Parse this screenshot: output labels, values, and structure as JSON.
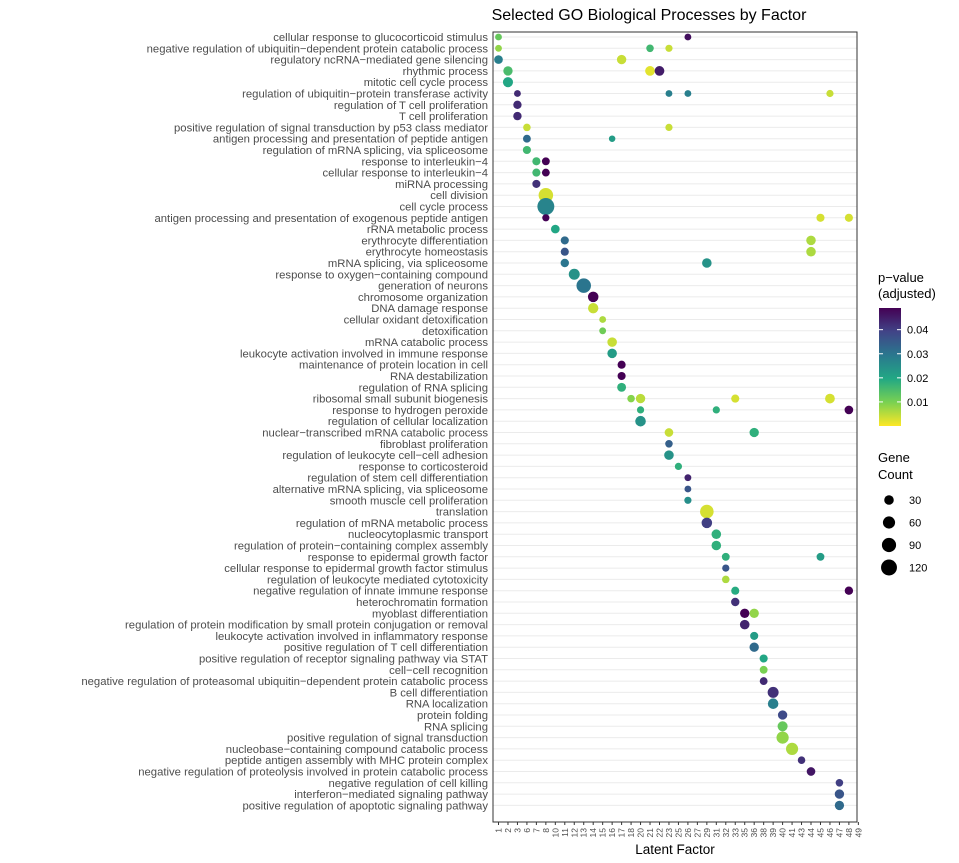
{
  "chart_data": {
    "type": "scatter",
    "title": "Selected GO Biological Processes by Factor",
    "xlabel": "Latent Factor",
    "ylabel": "",
    "x_categories": [
      "1",
      "2",
      "3",
      "6",
      "7",
      "8",
      "10",
      "11",
      "12",
      "13",
      "14",
      "15",
      "16",
      "17",
      "18",
      "20",
      "21",
      "22",
      "23",
      "25",
      "26",
      "27",
      "29",
      "31",
      "32",
      "33",
      "35",
      "36",
      "38",
      "39",
      "40",
      "41",
      "43",
      "44",
      "45",
      "46",
      "47",
      "48",
      "49"
    ],
    "y_categories": [
      "cellular response to glucocorticoid stimulus",
      "negative regulation of ubiquitin−dependent protein catabolic process",
      "regulatory ncRNA−mediated gene silencing",
      "rhythmic process",
      "mitotic cell cycle process",
      "regulation of ubiquitin−protein transferase activity",
      "regulation of T cell proliferation",
      "T cell proliferation",
      "positive regulation of signal transduction by p53 class mediator",
      "antigen processing and presentation of peptide antigen",
      "regulation of mRNA splicing, via spliceosome",
      "response to interleukin−4",
      "cellular response to interleukin−4",
      "miRNA processing",
      "cell division",
      "cell cycle process",
      "antigen processing and presentation of exogenous peptide antigen",
      "rRNA metabolic process",
      "erythrocyte differentiation",
      "erythrocyte homeostasis",
      "mRNA splicing, via spliceosome",
      "response to oxygen−containing compound",
      "generation of neurons",
      "chromosome organization",
      "DNA damage response",
      "cellular oxidant detoxification",
      "detoxification",
      "mRNA catabolic process",
      "leukocyte activation involved in immune response",
      "maintenance of protein location in cell",
      "RNA destabilization",
      "regulation of RNA splicing",
      "ribosomal small subunit biogenesis",
      "response to hydrogen peroxide",
      "regulation of cellular localization",
      "nuclear−transcribed mRNA catabolic process",
      "fibroblast proliferation",
      "regulation of leukocyte cell−cell adhesion",
      "response to corticosteroid",
      "regulation of stem cell differentiation",
      "alternative mRNA splicing, via spliceosome",
      "smooth muscle cell proliferation",
      "translation",
      "regulation of mRNA metabolic process",
      "nucleocytoplasmic transport",
      "regulation of protein−containing complex assembly",
      "response to epidermal growth factor",
      "cellular response to epidermal growth factor stimulus",
      "regulation of leukocyte mediated cytotoxicity",
      "negative regulation of innate immune response",
      "heterochromatin formation",
      "myoblast differentiation",
      "regulation of protein modification by small protein conjugation or removal",
      "leukocyte activation involved in inflammatory response",
      "positive regulation of T cell differentiation",
      "positive regulation of receptor signaling pathway via STAT",
      "cell−cell recognition",
      "negative regulation of proteasomal ubiquitin−dependent protein catabolic process",
      "B cell differentiation",
      "RNA localization",
      "protein folding",
      "RNA splicing",
      "positive regulation of signal transduction",
      "nucleobase−containing compound catabolic process",
      "peptide antigen assembly with MHC protein complex",
      "negative regulation of proteolysis involved in protein catabolic process",
      "negative regulation of cell killing",
      "interferon−mediated signaling pathway",
      "positive regulation of apoptotic signaling pathway"
    ],
    "points": [
      {
        "term": 0,
        "factor": "1",
        "count": 10,
        "p": 0.012
      },
      {
        "term": 0,
        "factor": "26",
        "count": 10,
        "p": 0.047
      },
      {
        "term": 1,
        "factor": "1",
        "count": 10,
        "p": 0.008
      },
      {
        "term": 1,
        "factor": "21",
        "count": 14,
        "p": 0.016
      },
      {
        "term": 1,
        "factor": "23",
        "count": 12,
        "p": 0.004
      },
      {
        "term": 2,
        "factor": "1",
        "count": 22,
        "p": 0.028
      },
      {
        "term": 2,
        "factor": "17",
        "count": 28,
        "p": 0.004
      },
      {
        "term": 3,
        "factor": "2",
        "count": 28,
        "p": 0.015
      },
      {
        "term": 3,
        "factor": "21",
        "count": 32,
        "p": 0.002
      },
      {
        "term": 3,
        "factor": "22",
        "count": 32,
        "p": 0.045
      },
      {
        "term": 4,
        "factor": "2",
        "count": 35,
        "p": 0.02
      },
      {
        "term": 5,
        "factor": "3",
        "count": 10,
        "p": 0.043
      },
      {
        "term": 5,
        "factor": "23",
        "count": 10,
        "p": 0.028
      },
      {
        "term": 5,
        "factor": "26",
        "count": 10,
        "p": 0.028
      },
      {
        "term": 5,
        "factor": "46",
        "count": 12,
        "p": 0.004
      },
      {
        "term": 6,
        "factor": "3",
        "count": 20,
        "p": 0.043
      },
      {
        "term": 7,
        "factor": "3",
        "count": 20,
        "p": 0.043
      },
      {
        "term": 8,
        "factor": "6",
        "count": 14,
        "p": 0.004
      },
      {
        "term": 8,
        "factor": "23",
        "count": 12,
        "p": 0.004
      },
      {
        "term": 9,
        "factor": "6",
        "count": 16,
        "p": 0.032
      },
      {
        "term": 9,
        "factor": "16",
        "count": 8,
        "p": 0.022
      },
      {
        "term": 10,
        "factor": "6",
        "count": 18,
        "p": 0.016
      },
      {
        "term": 11,
        "factor": "7",
        "count": 18,
        "p": 0.016
      },
      {
        "term": 11,
        "factor": "8",
        "count": 16,
        "p": 0.049
      },
      {
        "term": 12,
        "factor": "7",
        "count": 18,
        "p": 0.016
      },
      {
        "term": 12,
        "factor": "8",
        "count": 16,
        "p": 0.049
      },
      {
        "term": 13,
        "factor": "7",
        "count": 18,
        "p": 0.042
      },
      {
        "term": 14,
        "factor": "8",
        "count": 95,
        "p": 0.003
      },
      {
        "term": 15,
        "factor": "8",
        "count": 140,
        "p": 0.027
      },
      {
        "term": 16,
        "factor": "8",
        "count": 12,
        "p": 0.049
      },
      {
        "term": 16,
        "factor": "45",
        "count": 18,
        "p": 0.003
      },
      {
        "term": 16,
        "factor": "48",
        "count": 18,
        "p": 0.003
      },
      {
        "term": 17,
        "factor": "10",
        "count": 22,
        "p": 0.02
      },
      {
        "term": 18,
        "factor": "11",
        "count": 18,
        "p": 0.032
      },
      {
        "term": 18,
        "factor": "44",
        "count": 30,
        "p": 0.006
      },
      {
        "term": 19,
        "factor": "11",
        "count": 18,
        "p": 0.036
      },
      {
        "term": 19,
        "factor": "44",
        "count": 30,
        "p": 0.006
      },
      {
        "term": 20,
        "factor": "11",
        "count": 20,
        "p": 0.03
      },
      {
        "term": 20,
        "factor": "29",
        "count": 30,
        "p": 0.024
      },
      {
        "term": 21,
        "factor": "12",
        "count": 45,
        "p": 0.024
      },
      {
        "term": 22,
        "factor": "13",
        "count": 95,
        "p": 0.03
      },
      {
        "term": 23,
        "factor": "14",
        "count": 40,
        "p": 0.049
      },
      {
        "term": 24,
        "factor": "14",
        "count": 38,
        "p": 0.004
      },
      {
        "term": 25,
        "factor": "15",
        "count": 10,
        "p": 0.006
      },
      {
        "term": 26,
        "factor": "15",
        "count": 10,
        "p": 0.011
      },
      {
        "term": 27,
        "factor": "16",
        "count": 30,
        "p": 0.004
      },
      {
        "term": 28,
        "factor": "16",
        "count": 30,
        "p": 0.022
      },
      {
        "term": 29,
        "factor": "17",
        "count": 18,
        "p": 0.049
      },
      {
        "term": 30,
        "factor": "17",
        "count": 18,
        "p": 0.049
      },
      {
        "term": 31,
        "factor": "17",
        "count": 24,
        "p": 0.018
      },
      {
        "term": 32,
        "factor": "18",
        "count": 14,
        "p": 0.009
      },
      {
        "term": 32,
        "factor": "20",
        "count": 28,
        "p": 0.005
      },
      {
        "term": 32,
        "factor": "33",
        "count": 18,
        "p": 0.003
      },
      {
        "term": 32,
        "factor": "46",
        "count": 32,
        "p": 0.003
      },
      {
        "term": 33,
        "factor": "20",
        "count": 12,
        "p": 0.018
      },
      {
        "term": 33,
        "factor": "31",
        "count": 12,
        "p": 0.018
      },
      {
        "term": 33,
        "factor": "48",
        "count": 22,
        "p": 0.049
      },
      {
        "term": 34,
        "factor": "20",
        "count": 40,
        "p": 0.024
      },
      {
        "term": 35,
        "factor": "23",
        "count": 22,
        "p": 0.004
      },
      {
        "term": 35,
        "factor": "36",
        "count": 28,
        "p": 0.018
      },
      {
        "term": 36,
        "factor": "23",
        "count": 14,
        "p": 0.034
      },
      {
        "term": 37,
        "factor": "23",
        "count": 30,
        "p": 0.024
      },
      {
        "term": 38,
        "factor": "25",
        "count": 12,
        "p": 0.018
      },
      {
        "term": 39,
        "factor": "26",
        "count": 10,
        "p": 0.044
      },
      {
        "term": 40,
        "factor": "26",
        "count": 10,
        "p": 0.036
      },
      {
        "term": 41,
        "factor": "26",
        "count": 12,
        "p": 0.025
      },
      {
        "term": 42,
        "factor": "29",
        "count": 80,
        "p": 0.003
      },
      {
        "term": 43,
        "factor": "29",
        "count": 40,
        "p": 0.04
      },
      {
        "term": 44,
        "factor": "31",
        "count": 30,
        "p": 0.018
      },
      {
        "term": 45,
        "factor": "31",
        "count": 30,
        "p": 0.018
      },
      {
        "term": 46,
        "factor": "32",
        "count": 16,
        "p": 0.018
      },
      {
        "term": 46,
        "factor": "45",
        "count": 16,
        "p": 0.022
      },
      {
        "term": 47,
        "factor": "32",
        "count": 12,
        "p": 0.036
      },
      {
        "term": 48,
        "factor": "32",
        "count": 14,
        "p": 0.006
      },
      {
        "term": 49,
        "factor": "33",
        "count": 18,
        "p": 0.019
      },
      {
        "term": 49,
        "factor": "48",
        "count": 20,
        "p": 0.049
      },
      {
        "term": 50,
        "factor": "33",
        "count": 20,
        "p": 0.042
      },
      {
        "term": 51,
        "factor": "35",
        "count": 28,
        "p": 0.049
      },
      {
        "term": 51,
        "factor": "36",
        "count": 28,
        "p": 0.008
      },
      {
        "term": 52,
        "factor": "35",
        "count": 30,
        "p": 0.044
      },
      {
        "term": 53,
        "factor": "36",
        "count": 18,
        "p": 0.022
      },
      {
        "term": 54,
        "factor": "36",
        "count": 28,
        "p": 0.032
      },
      {
        "term": 55,
        "factor": "38",
        "count": 18,
        "p": 0.02
      },
      {
        "term": 56,
        "factor": "38",
        "count": 16,
        "p": 0.01
      },
      {
        "term": 57,
        "factor": "38",
        "count": 16,
        "p": 0.043
      },
      {
        "term": 58,
        "factor": "39",
        "count": 45,
        "p": 0.042
      },
      {
        "term": 59,
        "factor": "39",
        "count": 40,
        "p": 0.028
      },
      {
        "term": 60,
        "factor": "40",
        "count": 28,
        "p": 0.038
      },
      {
        "term": 61,
        "factor": "40",
        "count": 35,
        "p": 0.012
      },
      {
        "term": 62,
        "factor": "40",
        "count": 60,
        "p": 0.008
      },
      {
        "term": 63,
        "factor": "41",
        "count": 60,
        "p": 0.006
      },
      {
        "term": 64,
        "factor": "43",
        "count": 14,
        "p": 0.042
      },
      {
        "term": 65,
        "factor": "44",
        "count": 22,
        "p": 0.046
      },
      {
        "term": 66,
        "factor": "47",
        "count": 14,
        "p": 0.04
      },
      {
        "term": 67,
        "factor": "47",
        "count": 28,
        "p": 0.036
      },
      {
        "term": 68,
        "factor": "47",
        "count": 28,
        "p": 0.032
      }
    ],
    "color_legend": {
      "title": [
        "p−value",
        "(adjusted)"
      ],
      "min": 0.0,
      "max": 0.049,
      "ticks": [
        0.01,
        0.02,
        0.03,
        0.04
      ],
      "tick_labels": [
        "0.01",
        "0.02",
        "0.03",
        "0.04"
      ],
      "colors": [
        "#fde725",
        "#7ad151",
        "#22a884",
        "#2a788e",
        "#414487",
        "#440154"
      ]
    },
    "size_legend": {
      "title": [
        "Gene",
        "Count"
      ],
      "values": [
        30,
        60,
        90,
        120
      ],
      "labels": [
        "30",
        "60",
        "90",
        "120"
      ]
    },
    "grid": true,
    "legend_position": "right"
  }
}
